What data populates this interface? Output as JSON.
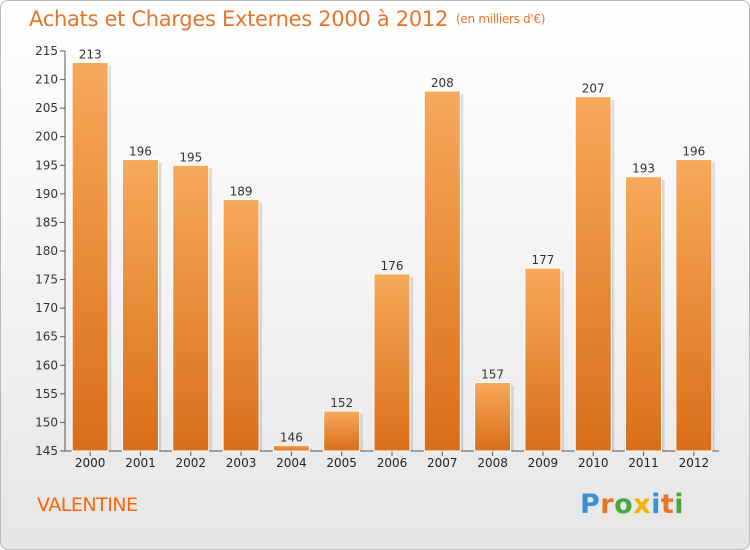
{
  "header": {
    "title": "Achats et Charges Externes 2000 à 2012",
    "unit": "(en milliers d'€)"
  },
  "footer": {
    "city": "VALENTINE",
    "logo_letters": [
      {
        "ch": "P",
        "color": "#3a8fd6"
      },
      {
        "ch": "r",
        "color": "#e8742a"
      },
      {
        "ch": "o",
        "color": "#4aa83a"
      },
      {
        "ch": "x",
        "color": "#f0b400"
      },
      {
        "ch": "i",
        "color": "#3a8fd6"
      },
      {
        "ch": "t",
        "color": "#e8742a"
      },
      {
        "ch": "i",
        "color": "#4aa83a"
      }
    ]
  },
  "colors": {
    "title": "#e8742a",
    "bar_light": "#f7a95a",
    "bar_dark": "#d96e1a",
    "city": "#ff6600"
  },
  "chart_data": {
    "type": "bar",
    "title": "Achats et Charges Externes 2000 à 2012",
    "subtitle": "(en milliers d'€)",
    "xlabel": "",
    "ylabel": "",
    "categories": [
      "2000",
      "2001",
      "2002",
      "2003",
      "2004",
      "2005",
      "2006",
      "2007",
      "2008",
      "2009",
      "2010",
      "2011",
      "2012"
    ],
    "values": [
      213,
      196,
      195,
      189,
      146,
      152,
      176,
      208,
      157,
      177,
      207,
      193,
      196
    ],
    "ylim": [
      145,
      215
    ],
    "yticks": [
      145,
      150,
      155,
      160,
      165,
      170,
      175,
      180,
      185,
      190,
      195,
      200,
      205,
      210,
      215
    ],
    "grid": false,
    "legend": "none",
    "data_labels": true
  }
}
